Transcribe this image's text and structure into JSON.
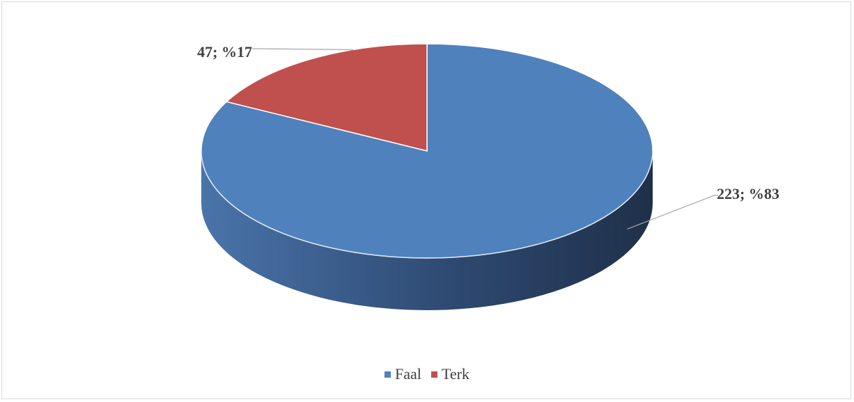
{
  "chart_data": {
    "type": "pie",
    "title": "",
    "style": "3d",
    "categories": [
      "Faal",
      "Terk"
    ],
    "values": [
      223,
      47
    ],
    "percent_labels": [
      "%83",
      "%17"
    ],
    "data_labels": [
      "223; %83",
      "47; %17"
    ],
    "colors": {
      "Faal": "#4f81bd",
      "Terk": "#c0504d",
      "Faal_side_light": "#4a74aa",
      "Faal_side_dark": "#1f3049",
      "Terk_side": "#8f3533",
      "leader_line": "#a6a6a6"
    },
    "legend_position": "bottom"
  }
}
